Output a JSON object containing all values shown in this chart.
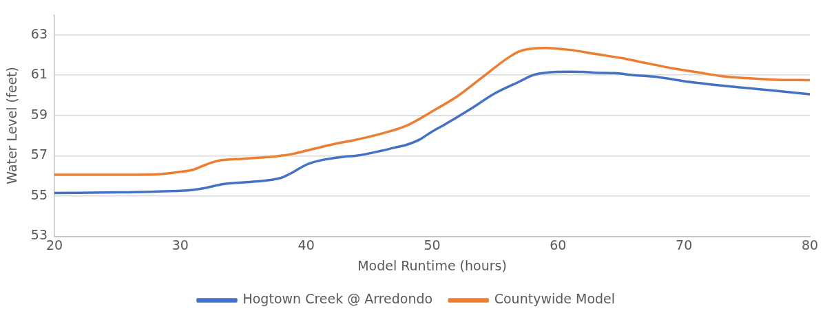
{
  "chart_data": {
    "type": "line",
    "xlabel": "Model Runtime (hours)",
    "ylabel": "Water Level (feet)",
    "xlim": [
      20,
      80
    ],
    "xticks": [
      20,
      30,
      40,
      50,
      60,
      70,
      80
    ],
    "ylim": [
      53,
      64
    ],
    "yticks": [
      53,
      55,
      57,
      59,
      61,
      63
    ],
    "grid": "y",
    "legend": "bottom",
    "marker": "none",
    "line_style": "solid",
    "series": [
      {
        "name": "Hogtown Creek @ Arredondo",
        "color": "#4472c4",
        "x": [
          20,
          25,
          28,
          31,
          32,
          33.5,
          36,
          38,
          39,
          40,
          41,
          43,
          44,
          46,
          47,
          48,
          49,
          50,
          51,
          53,
          55,
          57,
          58,
          59,
          61,
          62,
          63,
          64.5,
          66,
          68,
          70,
          72,
          74,
          76,
          78,
          80
        ],
        "values": [
          55.15,
          55.18,
          55.22,
          55.3,
          55.4,
          55.6,
          55.72,
          55.9,
          56.2,
          56.55,
          56.75,
          56.95,
          57.0,
          57.25,
          57.4,
          57.55,
          57.8,
          58.2,
          58.55,
          59.3,
          60.1,
          60.7,
          61.0,
          61.12,
          61.17,
          61.16,
          61.12,
          61.1,
          61.0,
          60.9,
          60.7,
          60.55,
          60.42,
          60.3,
          60.18,
          60.05
        ]
      },
      {
        "name": "Countywide Model",
        "color": "#ed7d31",
        "x": [
          20,
          25,
          28,
          30,
          31,
          32,
          33,
          35,
          37,
          38,
          39,
          40,
          42,
          44,
          46,
          48,
          50,
          52,
          54,
          56,
          57,
          58,
          59,
          61,
          63,
          65,
          67,
          69,
          71,
          73,
          75,
          77,
          80
        ],
        "values": [
          56.05,
          56.05,
          56.07,
          56.2,
          56.3,
          56.55,
          56.75,
          56.85,
          56.93,
          57.0,
          57.1,
          57.25,
          57.55,
          57.8,
          58.1,
          58.5,
          59.2,
          59.95,
          60.9,
          61.85,
          62.2,
          62.32,
          62.35,
          62.25,
          62.05,
          61.85,
          61.6,
          61.35,
          61.15,
          60.95,
          60.85,
          60.78,
          60.75
        ]
      }
    ]
  }
}
